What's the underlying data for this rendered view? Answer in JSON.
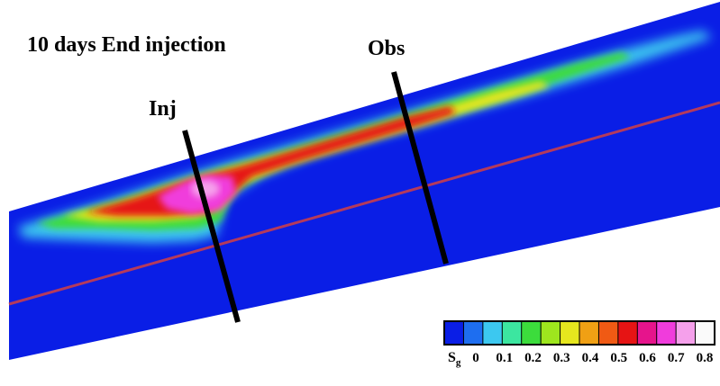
{
  "title": "10 days End injection",
  "wells": {
    "injector": "Inj",
    "observation": "Obs"
  },
  "colorbar": {
    "symbol": "S",
    "symbol_subscript": "g",
    "tick_labels": [
      "0",
      "0.1",
      "0.2",
      "0.3",
      "0.4",
      "0.5",
      "0.6",
      "0.7",
      "0.8"
    ],
    "range": [
      0,
      0.8
    ],
    "colors": [
      "#0a1ee6",
      "#1e6ef0",
      "#3cc8f0",
      "#3ce6a0",
      "#3cdc3c",
      "#9ee61e",
      "#e6e61e",
      "#f0a014",
      "#f05a14",
      "#e61414",
      "#e6148c",
      "#f03cdc",
      "#f5a0eb",
      "#fafafa"
    ]
  },
  "colors": {
    "reservoir": "#0a1ee6",
    "layer_boundary": "#b43a5c",
    "well": "#000000"
  }
}
